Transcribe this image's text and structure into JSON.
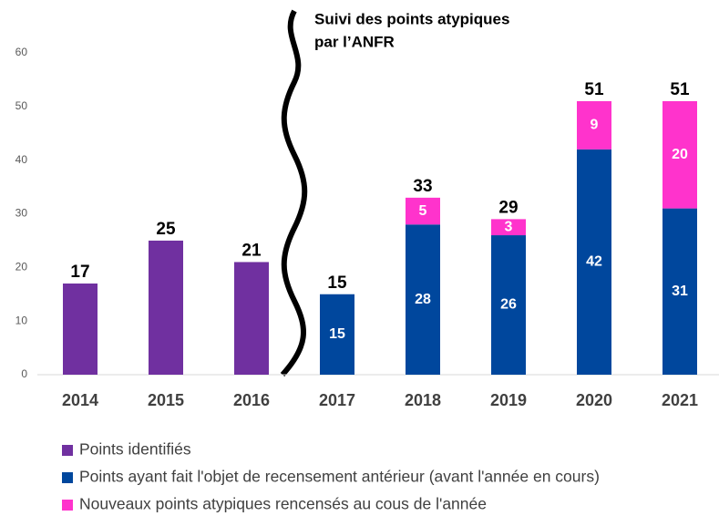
{
  "chart_data": {
    "type": "stacked_bar",
    "annotation": [
      "Suivi des points atypiques",
      "par  l’ANFR"
    ],
    "categories": [
      "2014",
      "2015",
      "2016",
      "2017",
      "2018",
      "2019",
      "2020",
      "2021"
    ],
    "series": [
      {
        "name": "Points identifiés",
        "color": "#7030a0",
        "values": [
          17,
          25,
          21,
          null,
          null,
          null,
          null,
          null
        ]
      },
      {
        "name": "Points ayant fait l'objet de recensement antérieur (avant l'année en cours)",
        "color": "#00479d",
        "values": [
          null,
          null,
          null,
          15,
          28,
          26,
          42,
          31
        ]
      },
      {
        "name": "Nouveaux points atypiques rencensés au cous de l'année",
        "color": "#ff33cc",
        "values": [
          null,
          null,
          null,
          null,
          5,
          3,
          9,
          20
        ]
      }
    ],
    "totals": [
      17,
      25,
      21,
      15,
      33,
      29,
      51,
      51
    ],
    "ylim": [
      0,
      60
    ],
    "yticks": [
      0,
      10,
      20,
      30,
      40,
      50,
      60
    ],
    "grid": false
  }
}
